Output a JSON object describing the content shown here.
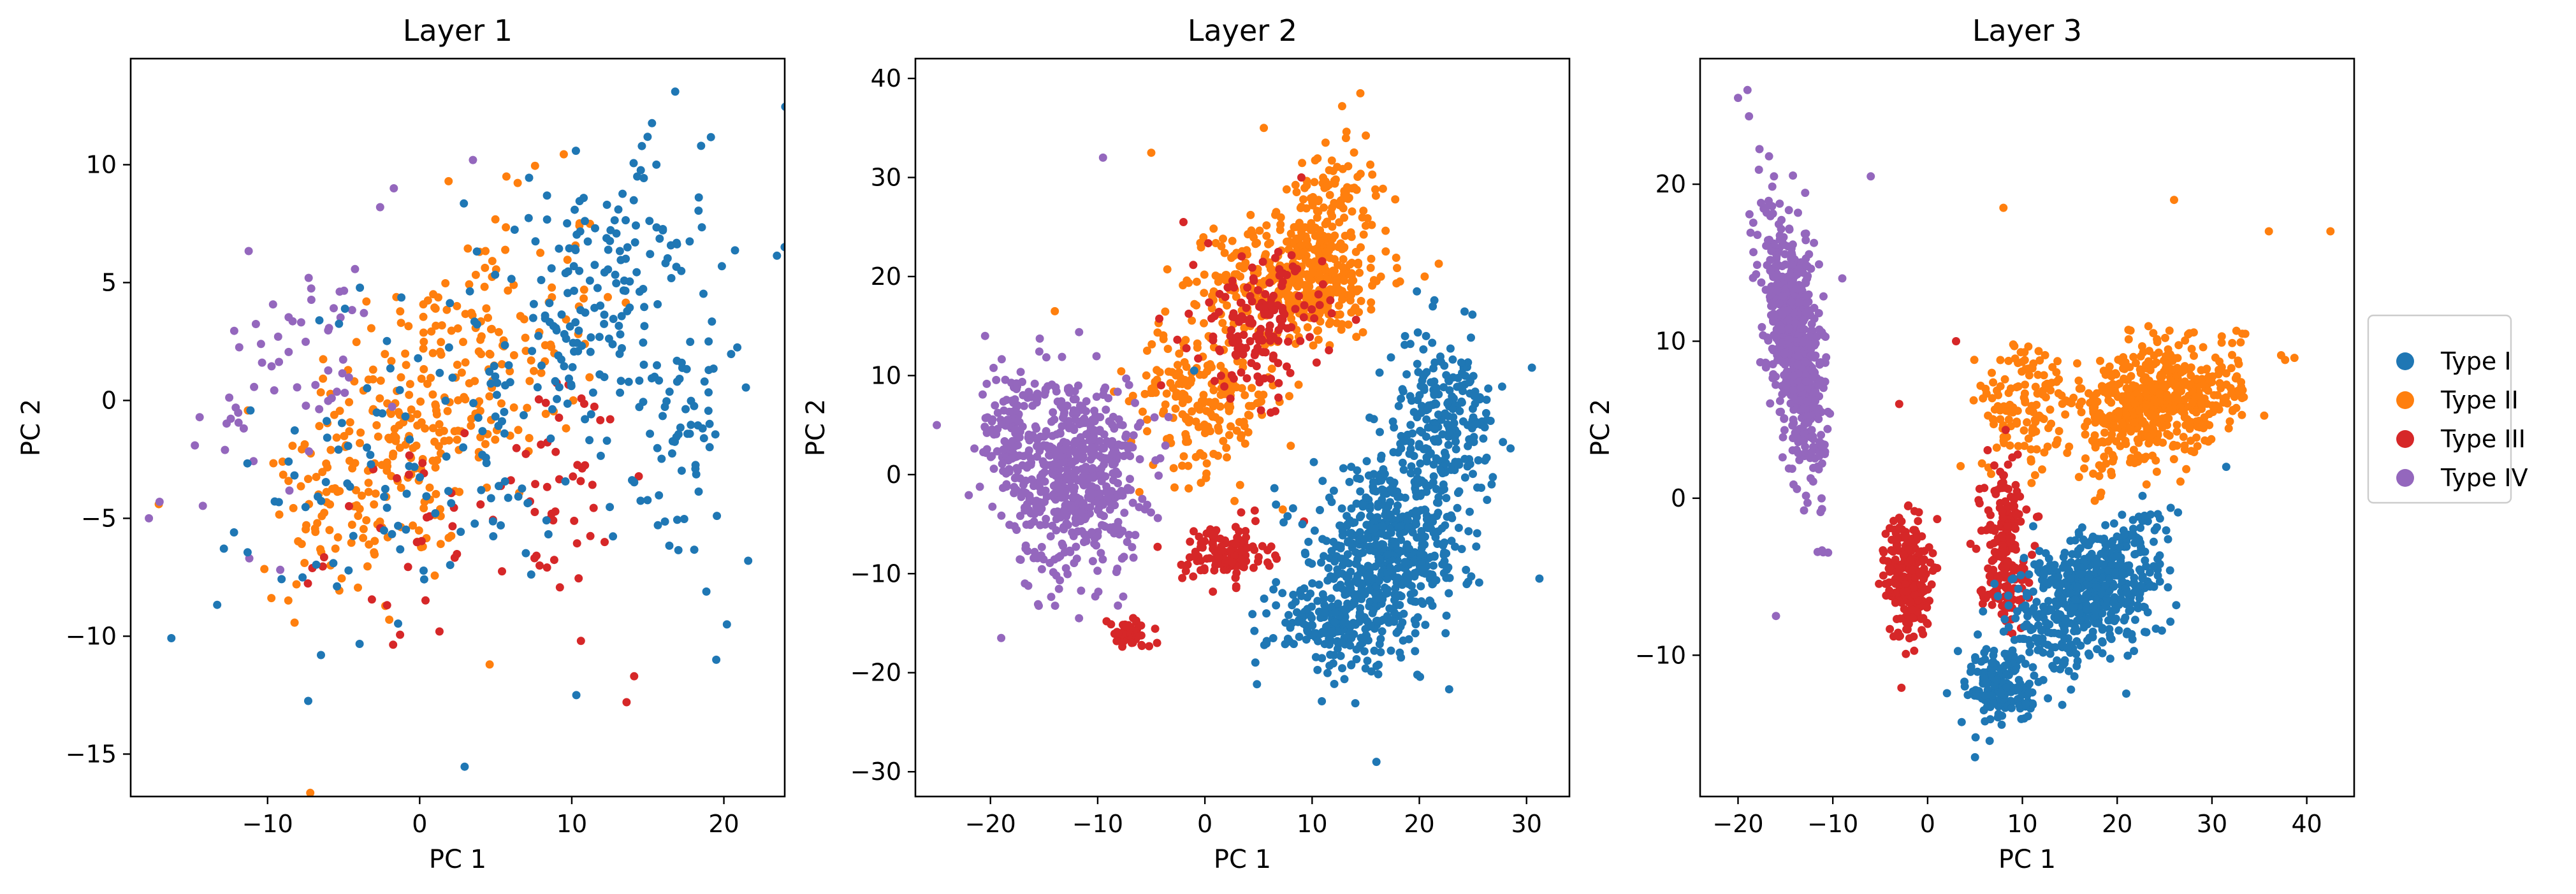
{
  "chart_data": [
    {
      "type": "scatter",
      "title": "Layer 1",
      "xlabel": "PC 1",
      "ylabel": "PC 2",
      "xlim": [
        -19,
        24
      ],
      "ylim": [
        -16.8,
        14.5
      ],
      "xticks": [
        -10,
        0,
        10,
        20
      ],
      "yticks": [
        -15,
        -10,
        -5,
        0,
        5,
        10
      ],
      "grid": false,
      "series": [
        {
          "name": "Type I",
          "color": "#1f77b4",
          "clusters": [
            [
              -6,
              -6,
              10,
              8,
              0.0,
              30
            ],
            [
              6,
              1,
              12,
              9,
              0.45,
              150
            ],
            [
              12,
              4,
              7,
              6,
              0.5,
              120
            ],
            [
              17,
              -2,
              4,
              6,
              0.4,
              60
            ]
          ],
          "points": [
            [
              16.8,
              13.1
            ],
            [
              18.5,
              10.8
            ],
            [
              21.6,
              -6.8
            ],
            [
              20.2,
              -9.5
            ],
            [
              19.5,
              -11.0
            ],
            [
              14.3,
              9.5
            ],
            [
              10.3,
              -12.5
            ]
          ]
        },
        {
          "name": "Type II",
          "color": "#ff7f0e",
          "clusters": [
            [
              -1,
              -1,
              8,
              7,
              0.35,
              180
            ],
            [
              4,
              1,
              8,
              7,
              0.45,
              140
            ],
            [
              -6,
              -5,
              4,
              4,
              0.3,
              40
            ]
          ],
          "points": [
            [
              5.7,
              9.5
            ],
            [
              4.6,
              -11.2
            ],
            [
              -2.0,
              -9.3
            ],
            [
              -8.1,
              -7.8
            ],
            [
              1.9,
              9.3
            ],
            [
              -3.5,
              4.2
            ]
          ]
        },
        {
          "name": "Type III",
          "color": "#d62728",
          "clusters": [
            [
              2,
              -5,
              8,
              4,
              0.3,
              40
            ],
            [
              10,
              -4,
              5,
              5,
              0.3,
              35
            ]
          ],
          "points": [
            [
              13.6,
              -12.8
            ],
            [
              14.1,
              -11.7
            ],
            [
              1.3,
              -9.8
            ],
            [
              -1.5,
              -3.3
            ],
            [
              10.6,
              -10.2
            ]
          ]
        },
        {
          "name": "Type IV",
          "color": "#9467bd",
          "clusters": [
            [
              -11,
              0,
              4,
              5,
              0.0,
              30
            ],
            [
              -6,
              2,
              3,
              4,
              0.0,
              25
            ]
          ],
          "points": [
            [
              -17.8,
              -5.0
            ],
            [
              -17.1,
              -4.3
            ],
            [
              -12.8,
              -2.1
            ],
            [
              -11.2,
              -6.7
            ],
            [
              -2.6,
              8.2
            ],
            [
              -1.7,
              9.0
            ],
            [
              -7.3,
              5.2
            ],
            [
              3.5,
              10.2
            ]
          ]
        }
      ]
    },
    {
      "type": "scatter",
      "title": "Layer 2",
      "xlabel": "PC 1",
      "ylabel": "PC 2",
      "xlim": [
        -27,
        34
      ],
      "ylim": [
        -32.5,
        42
      ],
      "xticks": [
        -20,
        -10,
        0,
        10,
        20,
        30
      ],
      "yticks": [
        -30,
        -20,
        -10,
        0,
        10,
        20,
        30,
        40
      ],
      "grid": false,
      "series": [
        {
          "name": "Type I",
          "color": "#1f77b4",
          "clusters": [
            [
              17,
              -8,
              7,
              8,
              0.0,
              520
            ],
            [
              22,
              5,
              5,
              9,
              0.0,
              240
            ],
            [
              12,
              -15,
              6,
              5,
              0.0,
              180
            ]
          ],
          "points": [
            [
              30.5,
              10.8
            ],
            [
              31.2,
              -10.5
            ],
            [
              16.0,
              -29.0
            ],
            [
              -1.0,
              10.5
            ]
          ]
        },
        {
          "name": "Type II",
          "color": "#ff7f0e",
          "clusters": [
            [
              9,
              20,
              8,
              6,
              0.0,
              420
            ],
            [
              0,
              8,
              7,
              8,
              0.0,
              220
            ],
            [
              12,
              28,
              4,
              5,
              0.0,
              90
            ]
          ],
          "points": [
            [
              14.5,
              38.5
            ],
            [
              12.8,
              37.2
            ],
            [
              -5.0,
              32.5
            ],
            [
              5.5,
              35.0
            ],
            [
              -14.0,
              16.5
            ],
            [
              20.5,
              20.0
            ]
          ]
        },
        {
          "name": "Type III",
          "color": "#d62728",
          "clusters": [
            [
              2,
              -8,
              4,
              3,
              0.0,
              120
            ],
            [
              -7,
              -16,
              2,
              1.5,
              0.0,
              50
            ],
            [
              5,
              15,
              6,
              7,
              0.0,
              160
            ]
          ],
          "points": [
            [
              -2.0,
              25.5
            ],
            [
              9.0,
              30.0
            ]
          ]
        },
        {
          "name": "Type IV",
          "color": "#9467bd",
          "clusters": [
            [
              -12,
              0,
              6,
              10,
              0.0,
              560
            ],
            [
              -18,
              4,
              3,
              7,
              0.0,
              120
            ]
          ],
          "points": [
            [
              -25.0,
              5.0
            ],
            [
              -9.5,
              32.0
            ],
            [
              -19.0,
              -16.5
            ],
            [
              -20.5,
              14.0
            ]
          ]
        }
      ]
    },
    {
      "type": "scatter",
      "title": "Layer 3",
      "xlabel": "PC 1",
      "ylabel": "PC 2",
      "xlim": [
        -24,
        45
      ],
      "ylim": [
        -19,
        28
      ],
      "xticks": [
        -20,
        -10,
        0,
        10,
        20,
        30,
        40
      ],
      "yticks": [
        -10,
        0,
        10,
        20
      ],
      "grid": false,
      "series": [
        {
          "name": "Type I",
          "color": "#1f77b4",
          "clusters": [
            [
              17,
              -6,
              8,
              4.5,
              0.35,
              560
            ],
            [
              8,
              -12,
              4,
              2.5,
              0.0,
              180
            ]
          ],
          "points": [
            [
              5.0,
              -16.5
            ],
            [
              31.5,
              2.0
            ]
          ]
        },
        {
          "name": "Type II",
          "color": "#ff7f0e",
          "clusters": [
            [
              24,
              6,
              9,
              4,
              0.35,
              560
            ],
            [
              10,
              6,
              5,
              4,
              0.0,
              120
            ]
          ],
          "points": [
            [
              42.5,
              17.0
            ],
            [
              26.0,
              19.0
            ],
            [
              8.0,
              18.5
            ],
            [
              36.0,
              17.0
            ]
          ]
        },
        {
          "name": "Type III",
          "color": "#d62728",
          "clusters": [
            [
              -2,
              -5,
              2.2,
              4,
              0.0,
              260
            ],
            [
              8,
              -3,
              2.5,
              5,
              0.0,
              200
            ]
          ],
          "points": [
            [
              -3.0,
              6.0
            ],
            [
              3.0,
              10.0
            ]
          ]
        },
        {
          "name": "Type IV",
          "color": "#9467bd",
          "clusters": [
            [
              -14,
              10,
              3,
              8,
              -0.55,
              720
            ]
          ],
          "points": [
            [
              -20.0,
              25.5
            ],
            [
              -19.0,
              26.0
            ],
            [
              -9.0,
              14.0
            ],
            [
              -6.0,
              20.5
            ],
            [
              -16.0,
              -7.5
            ]
          ]
        }
      ]
    }
  ],
  "legend": {
    "placement": "right",
    "entries": [
      {
        "label": "Type I",
        "color": "#1f77b4"
      },
      {
        "label": "Type II",
        "color": "#ff7f0e"
      },
      {
        "label": "Type III",
        "color": "#d62728"
      },
      {
        "label": "Type IV",
        "color": "#9467bd"
      }
    ]
  }
}
